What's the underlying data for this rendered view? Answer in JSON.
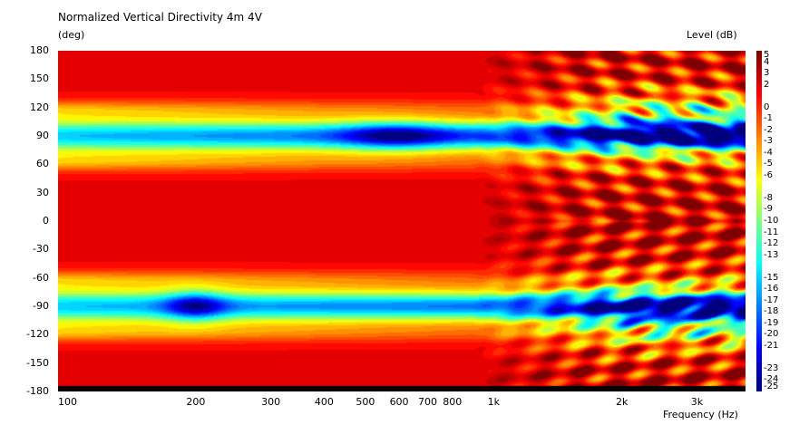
{
  "chart_data": {
    "type": "heatmap",
    "title": "Normalized Vertical Directivity 4m 4V",
    "ylabel": "(deg)",
    "xlabel": "Frequency  (Hz)",
    "colorbar_label": "Level  (dB)",
    "x_scale": "log",
    "xlim": [
      95,
      3900
    ],
    "ylim": [
      -180,
      180
    ],
    "y_ticks": [
      "180",
      "150",
      "120",
      "90",
      "60",
      "30",
      "0",
      "-30",
      "-60",
      "-90",
      "-120",
      "-150",
      "-180"
    ],
    "x_ticks": [
      "100",
      "200",
      "300",
      "400",
      "500",
      "600",
      "700",
      "800",
      "1k",
      "2k",
      "3k"
    ],
    "colorbar_range_db": [
      -25,
      5
    ],
    "colorbar_ticks": [
      "5",
      "4",
      "3",
      "2",
      "0",
      "-1",
      "-2",
      "-3",
      "-4",
      "-5",
      "-6",
      "-8",
      "-9",
      "-10",
      "-11",
      "-12",
      "-13",
      "-15",
      "-16",
      "-17",
      "-18",
      "-19",
      "-20",
      "-21",
      "-23",
      "-24",
      "-25"
    ],
    "grid": false,
    "approx_nulls": [
      {
        "angle_deg": 90,
        "freq_hz": [
          100,
          1000
        ],
        "level_db": -18
      },
      {
        "angle_deg": -90,
        "freq_hz": [
          100,
          1000
        ],
        "level_db": -18
      },
      {
        "angle_deg": -90,
        "freq_hz": [
          180,
          230
        ],
        "level_db": -24
      },
      {
        "angle_deg": 90,
        "freq_hz": [
          500,
          900
        ],
        "level_db": -22
      }
    ]
  }
}
